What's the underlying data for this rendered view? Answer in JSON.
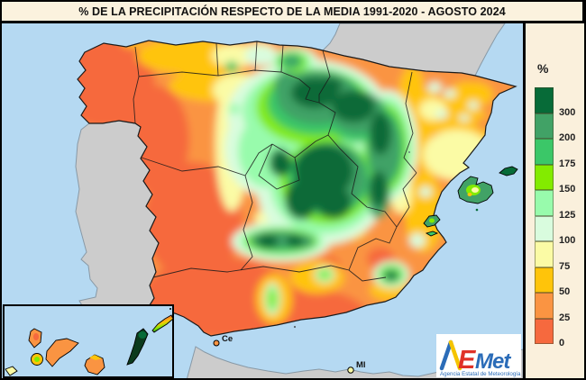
{
  "title": "% DE LA PRECIPITACIÓN RESPECTO DE LA MEDIA 1991-2020 - AGOSTO 2024",
  "legend": {
    "unit": "%",
    "entries": [
      {
        "label": "300",
        "color": "#076B38"
      },
      {
        "label": "200",
        "color": "#41A266"
      },
      {
        "label": "175",
        "color": "#3BC768"
      },
      {
        "label": "150",
        "color": "#83EB00"
      },
      {
        "label": "125",
        "color": "#98FBAC"
      },
      {
        "label": "100",
        "color": "#D9FCDE"
      },
      {
        "label": "75",
        "color": "#FBFBA5"
      },
      {
        "label": "50",
        "color": "#FFC40A"
      },
      {
        "label": "25",
        "color": "#FA9442"
      },
      {
        "label": "0",
        "color": "#F6693E"
      }
    ]
  },
  "map": {
    "labels": {
      "ceuta": "Ce",
      "melilla": "Ml"
    },
    "colors": {
      "sea": "#B5D9F2",
      "foreign_land": "#CCCCCC",
      "coast_stroke": "#8899A6",
      "border_stroke": "#1A1A1A",
      "title_background": "#FBF2DE",
      "legend_background": "#FAF0DC"
    }
  },
  "logo": {
    "text_a": "A",
    "text_e": "E",
    "text_met": "Met",
    "subtitle": "Agencia Estatal de Meteorología",
    "blue": "#2B6CB8",
    "red": "#E03127",
    "yellow": "#F5C400"
  }
}
